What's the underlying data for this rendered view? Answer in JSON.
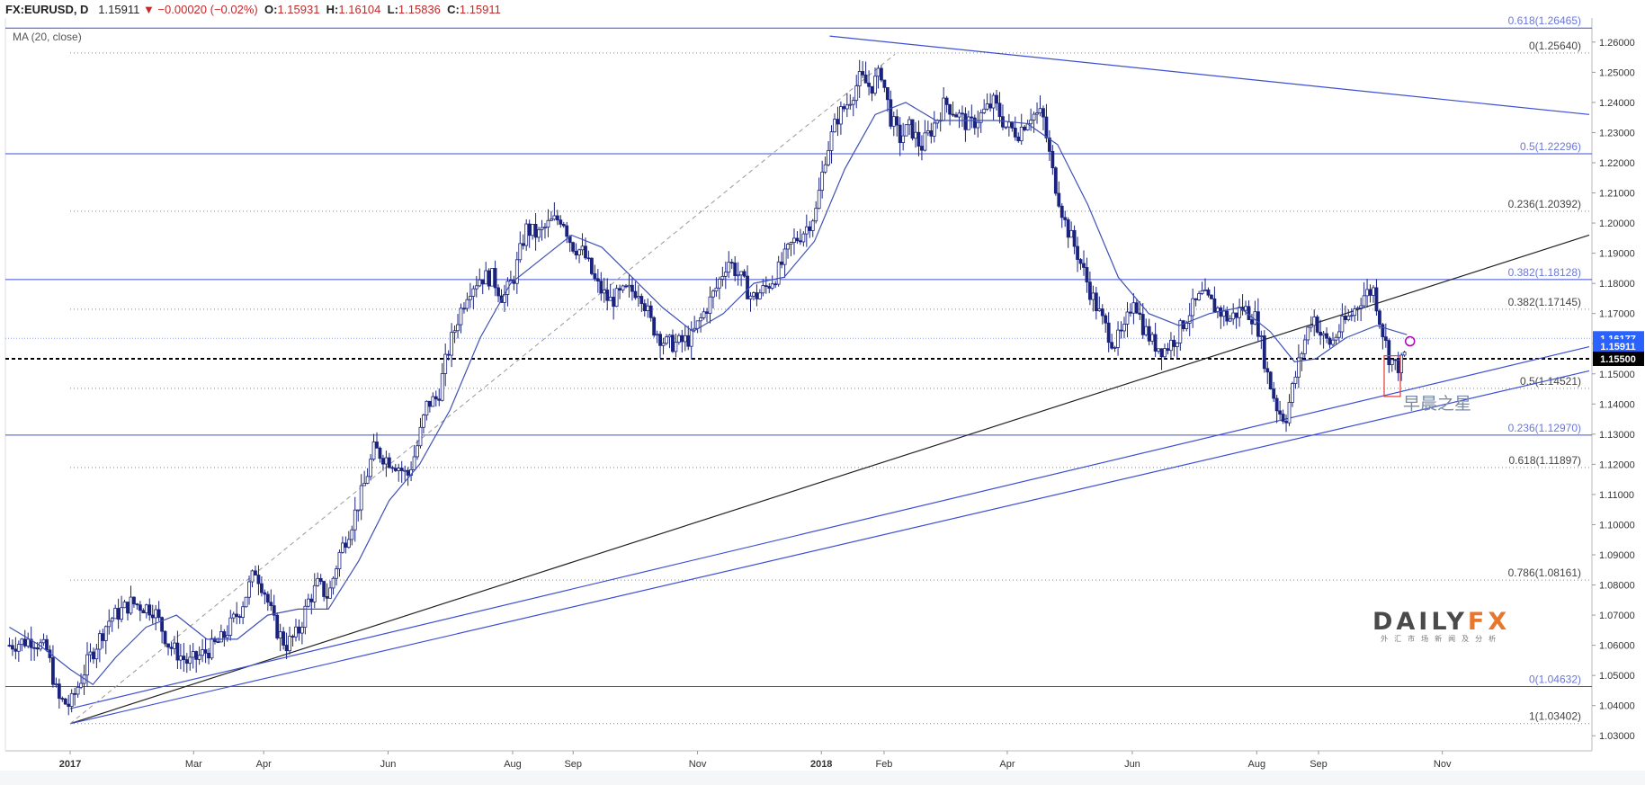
{
  "header": {
    "symbol": "FX:EURUSD, D",
    "last": "1.15911",
    "change": "▼ −0.00020 (−0.02%)",
    "o_label": "O:",
    "o": "1.15931",
    "h_label": "H:",
    "h": "1.16104",
    "l_label": "L:",
    "l": "1.15836",
    "c_label": "C:",
    "c": "1.15911"
  },
  "indicator_label": "MA (20, close)",
  "annotation": "早晨之星",
  "logo": {
    "brand_main": "DAILY",
    "brand_accent": "FX",
    "subtitle": "外汇市场新闻及分析"
  },
  "colors": {
    "candle": "#1a237e",
    "ma": "#3f51b5",
    "fib": "#3d4fd4",
    "trend": "#222222",
    "price_tag": "#2962ff",
    "price_tag_dark": "#000000"
  },
  "chart_data": {
    "type": "candlestick",
    "ylim": [
      1.025,
      1.268
    ],
    "y_ticks": [
      "1.26000",
      "1.25000",
      "1.24000",
      "1.23000",
      "1.22000",
      "1.21000",
      "1.20000",
      "1.19000",
      "1.18000",
      "1.17000",
      "1.16000",
      "1.15000",
      "1.14000",
      "1.13000",
      "1.12000",
      "1.11000",
      "1.10000",
      "1.09000",
      "1.08000",
      "1.07000",
      "1.06000",
      "1.05000",
      "1.04000",
      "1.03000"
    ],
    "x_ticks": [
      {
        "label": "2017",
        "pos": 0.0
      },
      {
        "label": "Mar",
        "pos": 0.0813
      },
      {
        "label": "Apr",
        "pos": 0.1274
      },
      {
        "label": "Jun",
        "pos": 0.2093
      },
      {
        "label": "Aug",
        "pos": 0.2913
      },
      {
        "label": "Sep",
        "pos": 0.3311
      },
      {
        "label": "Nov",
        "pos": 0.413
      },
      {
        "label": "2018",
        "pos": 0.4945
      },
      {
        "label": "Feb",
        "pos": 0.5358
      },
      {
        "label": "Apr",
        "pos": 0.6169
      },
      {
        "label": "Jun",
        "pos": 0.6992
      },
      {
        "label": "Aug",
        "pos": 0.7811
      },
      {
        "label": "Sep",
        "pos": 0.8218
      },
      {
        "label": "Nov",
        "pos": 0.9033
      }
    ],
    "price_path": [
      [
        -0.04,
        1.06
      ],
      [
        -0.025,
        1.062
      ],
      [
        -0.015,
        1.058
      ],
      [
        -0.008,
        1.042
      ],
      [
        0.0,
        1.04
      ],
      [
        0.012,
        1.055
      ],
      [
        0.025,
        1.068
      ],
      [
        0.04,
        1.074
      ],
      [
        0.055,
        1.072
      ],
      [
        0.065,
        1.06
      ],
      [
        0.078,
        1.054
      ],
      [
        0.09,
        1.058
      ],
      [
        0.1,
        1.062
      ],
      [
        0.112,
        1.072
      ],
      [
        0.122,
        1.085
      ],
      [
        0.128,
        1.078
      ],
      [
        0.135,
        1.066
      ],
      [
        0.142,
        1.06
      ],
      [
        0.15,
        1.064
      ],
      [
        0.157,
        1.075
      ],
      [
        0.163,
        1.08
      ],
      [
        0.17,
        1.076
      ],
      [
        0.177,
        1.09
      ],
      [
        0.185,
        1.1
      ],
      [
        0.193,
        1.112
      ],
      [
        0.2,
        1.125
      ],
      [
        0.208,
        1.122
      ],
      [
        0.215,
        1.12
      ],
      [
        0.222,
        1.116
      ],
      [
        0.228,
        1.125
      ],
      [
        0.235,
        1.14
      ],
      [
        0.242,
        1.142
      ],
      [
        0.248,
        1.156
      ],
      [
        0.255,
        1.168
      ],
      [
        0.262,
        1.178
      ],
      [
        0.27,
        1.182
      ],
      [
        0.278,
        1.182
      ],
      [
        0.285,
        1.175
      ],
      [
        0.292,
        1.182
      ],
      [
        0.3,
        1.198
      ],
      [
        0.308,
        1.196
      ],
      [
        0.316,
        1.2
      ],
      [
        0.324,
        1.202
      ],
      [
        0.33,
        1.193
      ],
      [
        0.338,
        1.19
      ],
      [
        0.346,
        1.18
      ],
      [
        0.355,
        1.174
      ],
      [
        0.365,
        1.177
      ],
      [
        0.375,
        1.178
      ],
      [
        0.383,
        1.166
      ],
      [
        0.392,
        1.16
      ],
      [
        0.4,
        1.16
      ],
      [
        0.409,
        1.162
      ],
      [
        0.417,
        1.17
      ],
      [
        0.425,
        1.178
      ],
      [
        0.433,
        1.188
      ],
      [
        0.441,
        1.182
      ],
      [
        0.449,
        1.175
      ],
      [
        0.457,
        1.178
      ],
      [
        0.465,
        1.183
      ],
      [
        0.475,
        1.193
      ],
      [
        0.484,
        1.198
      ],
      [
        0.491,
        1.204
      ],
      [
        0.497,
        1.222
      ],
      [
        0.505,
        1.235
      ],
      [
        0.512,
        1.24
      ],
      [
        0.52,
        1.248
      ],
      [
        0.527,
        1.245
      ],
      [
        0.534,
        1.25
      ],
      [
        0.54,
        1.235
      ],
      [
        0.546,
        1.228
      ],
      [
        0.553,
        1.232
      ],
      [
        0.56,
        1.225
      ],
      [
        0.568,
        1.232
      ],
      [
        0.576,
        1.24
      ],
      [
        0.584,
        1.236
      ],
      [
        0.592,
        1.232
      ],
      [
        0.6,
        1.236
      ],
      [
        0.608,
        1.24
      ],
      [
        0.616,
        1.232
      ],
      [
        0.624,
        1.23
      ],
      [
        0.632,
        1.236
      ],
      [
        0.64,
        1.236
      ],
      [
        0.647,
        1.216
      ],
      [
        0.655,
        1.2
      ],
      [
        0.663,
        1.19
      ],
      [
        0.671,
        1.178
      ],
      [
        0.679,
        1.168
      ],
      [
        0.687,
        1.16
      ],
      [
        0.694,
        1.164
      ],
      [
        0.7,
        1.176
      ],
      [
        0.706,
        1.166
      ],
      [
        0.713,
        1.16
      ],
      [
        0.72,
        1.158
      ],
      [
        0.728,
        1.162
      ],
      [
        0.736,
        1.17
      ],
      [
        0.745,
        1.176
      ],
      [
        0.754,
        1.172
      ],
      [
        0.763,
        1.168
      ],
      [
        0.772,
        1.172
      ],
      [
        0.781,
        1.168
      ],
      [
        0.788,
        1.15
      ],
      [
        0.795,
        1.138
      ],
      [
        0.8,
        1.135
      ],
      [
        0.806,
        1.148
      ],
      [
        0.812,
        1.16
      ],
      [
        0.818,
        1.17
      ],
      [
        0.824,
        1.162
      ],
      [
        0.83,
        1.16
      ],
      [
        0.837,
        1.166
      ],
      [
        0.844,
        1.17
      ],
      [
        0.851,
        1.176
      ],
      [
        0.858,
        1.178
      ],
      [
        0.863,
        1.166
      ],
      [
        0.868,
        1.156
      ],
      [
        0.873,
        1.152
      ],
      [
        0.877,
        1.154
      ],
      [
        0.88,
        1.159
      ]
    ],
    "ma_path": [
      [
        -0.04,
        1.066
      ],
      [
        -0.02,
        1.06
      ],
      [
        0.0,
        1.052
      ],
      [
        0.015,
        1.047
      ],
      [
        0.03,
        1.056
      ],
      [
        0.05,
        1.066
      ],
      [
        0.07,
        1.07
      ],
      [
        0.09,
        1.062
      ],
      [
        0.11,
        1.062
      ],
      [
        0.13,
        1.07
      ],
      [
        0.15,
        1.072
      ],
      [
        0.17,
        1.072
      ],
      [
        0.19,
        1.088
      ],
      [
        0.21,
        1.108
      ],
      [
        0.23,
        1.12
      ],
      [
        0.25,
        1.138
      ],
      [
        0.27,
        1.162
      ],
      [
        0.29,
        1.18
      ],
      [
        0.31,
        1.188
      ],
      [
        0.33,
        1.196
      ],
      [
        0.35,
        1.192
      ],
      [
        0.37,
        1.182
      ],
      [
        0.39,
        1.172
      ],
      [
        0.41,
        1.164
      ],
      [
        0.43,
        1.17
      ],
      [
        0.45,
        1.18
      ],
      [
        0.47,
        1.182
      ],
      [
        0.49,
        1.194
      ],
      [
        0.51,
        1.218
      ],
      [
        0.53,
        1.236
      ],
      [
        0.55,
        1.24
      ],
      [
        0.57,
        1.234
      ],
      [
        0.59,
        1.234
      ],
      [
        0.61,
        1.234
      ],
      [
        0.63,
        1.233
      ],
      [
        0.65,
        1.226
      ],
      [
        0.67,
        1.206
      ],
      [
        0.69,
        1.182
      ],
      [
        0.71,
        1.17
      ],
      [
        0.73,
        1.166
      ],
      [
        0.75,
        1.17
      ],
      [
        0.77,
        1.172
      ],
      [
        0.79,
        1.164
      ],
      [
        0.806,
        1.154
      ],
      [
        0.82,
        1.155
      ],
      [
        0.84,
        1.162
      ],
      [
        0.86,
        1.166
      ],
      [
        0.88,
        1.163
      ]
    ],
    "fib_levels_blue": [
      {
        "label": "0.618(1.26465)",
        "value": 1.26465
      },
      {
        "label": "0.5(1.22296)",
        "value": 1.22296
      },
      {
        "label": "0.382(1.18128)",
        "value": 1.18128
      },
      {
        "label": "0.236(1.12970)",
        "value": 1.1297
      },
      {
        "label": "0(1.04632)",
        "value": 1.04632
      }
    ],
    "fib_levels_dotted": [
      {
        "label": "0(1.25640)",
        "value": 1.2564
      },
      {
        "label": "0.236(1.20392)",
        "value": 1.20392
      },
      {
        "label": "0.382(1.17145)",
        "value": 1.17145
      },
      {
        "label": "0.5(1.14521)",
        "value": 1.14521
      },
      {
        "label": "0.618(1.11897)",
        "value": 1.11897
      },
      {
        "label": "0.786(1.08161)",
        "value": 1.08161
      },
      {
        "label": "1(1.03402)",
        "value": 1.03402
      }
    ],
    "horizontal_line": 1.155,
    "price_tags": [
      {
        "label": "1.16177",
        "value": 1.16177,
        "style": "blue"
      },
      {
        "label": "1.15911",
        "value": 1.15911,
        "style": "blue"
      },
      {
        "label": "1.15500",
        "value": 1.155,
        "style": "dark"
      }
    ],
    "trendlines": [
      {
        "from": [
          0.0,
          1.034
        ],
        "to": [
          1.0,
          1.196
        ],
        "color": "trend"
      },
      {
        "from": [
          0.0,
          1.039
        ],
        "to": [
          1.0,
          1.159
        ],
        "color": "fib"
      },
      {
        "from": [
          0.0,
          1.034
        ],
        "to": [
          1.0,
          1.151
        ],
        "color": "fib"
      },
      {
        "from": [
          0.5,
          1.262
        ],
        "to": [
          1.0,
          1.236
        ],
        "color": "fib"
      }
    ],
    "dashed_fib_line": {
      "from": [
        0.0,
        1.034
      ],
      "to": [
        0.543,
        1.256
      ]
    }
  }
}
